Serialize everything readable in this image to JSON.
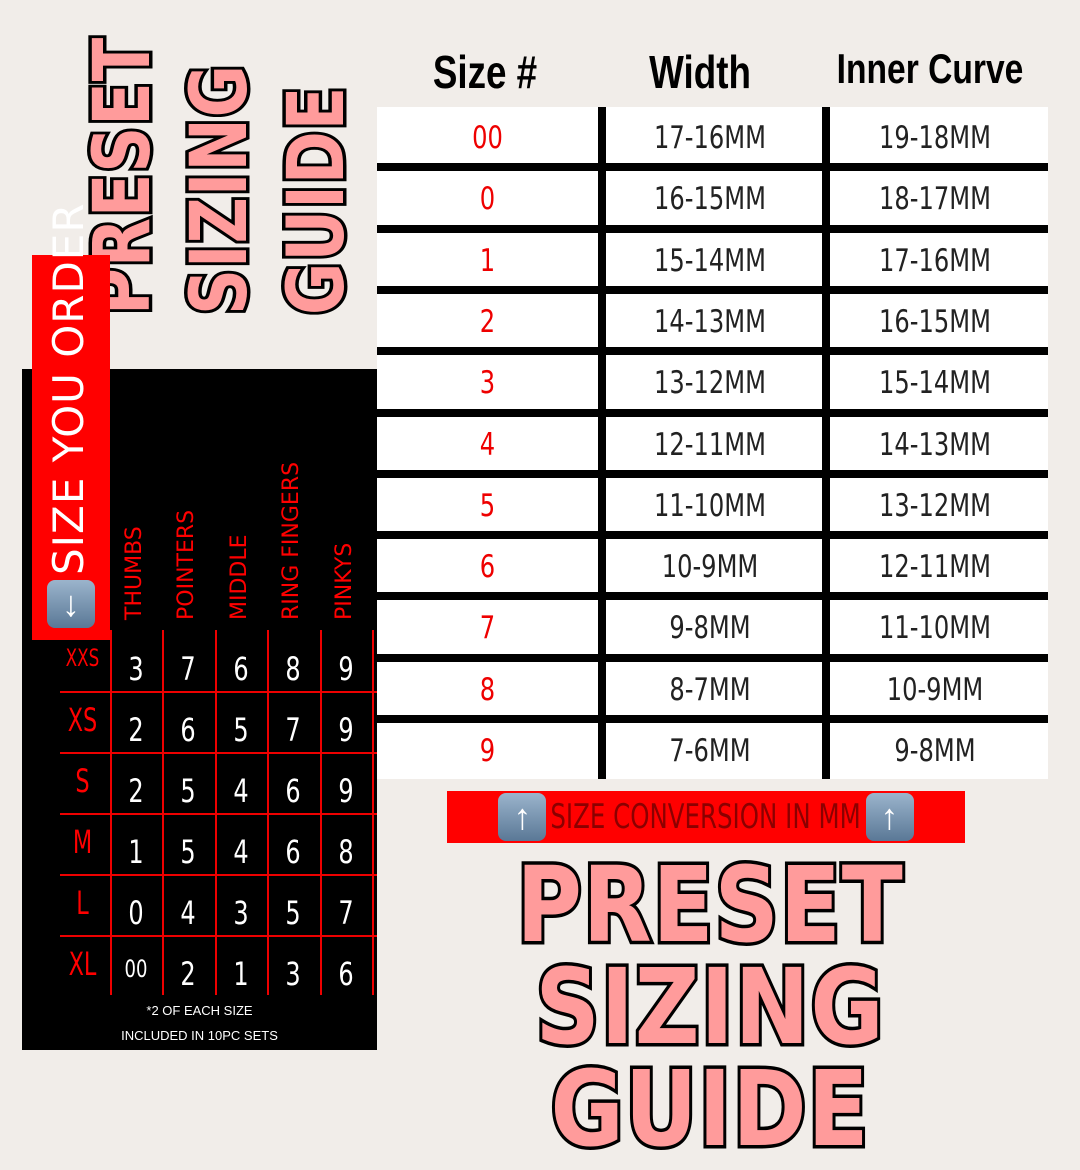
{
  "top_title": [
    "PRESET",
    "SIZING",
    "GUIDE"
  ],
  "bottom_title": [
    "PRESET SIZING",
    "GUIDE"
  ],
  "conversion_table": {
    "headers": [
      "Size #",
      "Width",
      "Inner Curve"
    ],
    "rows": [
      [
        "00",
        "17-16MM",
        "19-18MM"
      ],
      [
        "0",
        "16-15MM",
        "18-17MM"
      ],
      [
        "1",
        "15-14MM",
        "17-16MM"
      ],
      [
        "2",
        "14-13MM",
        "16-15MM"
      ],
      [
        "3",
        "13-12MM",
        "15-14MM"
      ],
      [
        "4",
        "12-11MM",
        "14-13MM"
      ],
      [
        "5",
        "11-10MM",
        "13-12MM"
      ],
      [
        "6",
        "10-9MM",
        "12-11MM"
      ],
      [
        "7",
        "9-8MM",
        "11-10MM"
      ],
      [
        "8",
        "8-7MM",
        "10-9MM"
      ],
      [
        "9",
        "7-6MM",
        "9-8MM"
      ]
    ]
  },
  "conversion_banner": {
    "text": "SIZE CONVERSION IN MM",
    "icon": "up-arrow-emoji"
  },
  "order_banner": {
    "text": "SIZE YOU ORDER",
    "icon": "down-arrow-emoji"
  },
  "finger_chart": {
    "columns": [
      "THUMBS",
      "POINTERS",
      "MIDDLE",
      "RING FINGERS",
      "PINKYS"
    ],
    "rows": [
      {
        "label": "XXS",
        "values": [
          "3",
          "7",
          "6",
          "8",
          "9"
        ]
      },
      {
        "label": "XS",
        "values": [
          "2",
          "6",
          "5",
          "7",
          "9"
        ]
      },
      {
        "label": "S",
        "values": [
          "2",
          "5",
          "4",
          "6",
          "9"
        ]
      },
      {
        "label": "M",
        "values": [
          "1",
          "5",
          "4",
          "6",
          "8"
        ]
      },
      {
        "label": "L",
        "values": [
          "0",
          "4",
          "3",
          "5",
          "7"
        ]
      },
      {
        "label": "XL",
        "values": [
          "00",
          "2",
          "1",
          "3",
          "6"
        ]
      }
    ],
    "note": [
      "*2 OF EACH SIZE",
      "INCLUDED IN 10PC SETS"
    ]
  },
  "colors": {
    "pink": "#ff9b9b",
    "red": "#ff0000",
    "background": "#f1ede9"
  }
}
